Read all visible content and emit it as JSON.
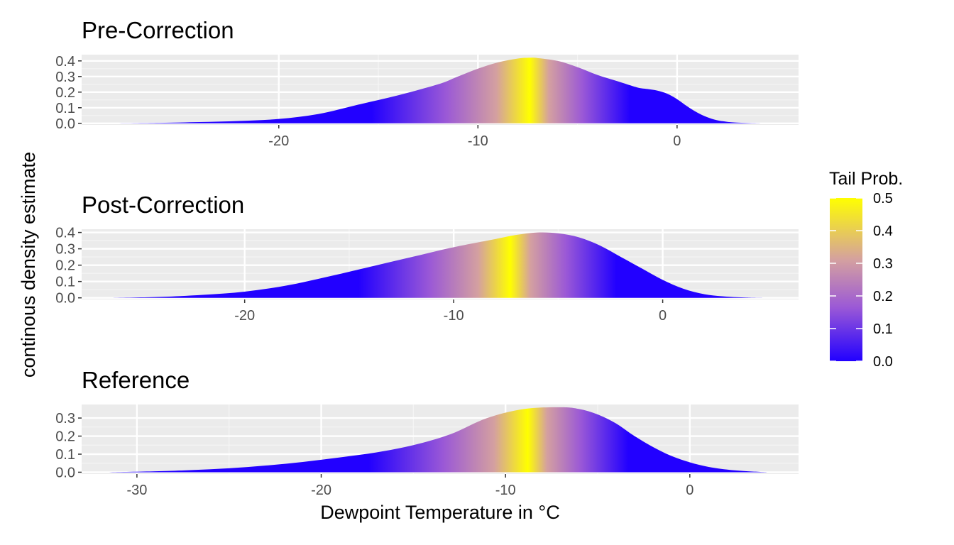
{
  "figure": {
    "ylabel": "continous density estimate",
    "xlabel": "Dewpoint Temperature in °C"
  },
  "legend": {
    "title": "Tail Prob.",
    "ticks": [
      "0.0",
      "0.1",
      "0.2",
      "0.3",
      "0.4",
      "0.5"
    ],
    "colors": [
      "#2200ff",
      "#9b59d6",
      "#d4a0a0",
      "#ffff00"
    ]
  },
  "chart_data": [
    {
      "type": "area",
      "title": "Pre-Correction",
      "xlim": [
        -29.9,
        6.1
      ],
      "ylim": [
        -0.01,
        0.44
      ],
      "x_ticks": [
        -20,
        -10,
        0
      ],
      "x_tick_labels": [
        "-20",
        "-10",
        "0"
      ],
      "y_ticks": [
        0,
        0.1,
        0.2,
        0.3,
        0.4
      ],
      "y_tick_labels": [
        "0.0",
        "0.1",
        "0.2",
        "0.3",
        "0.4"
      ],
      "x": [
        -28.3,
        -26,
        -24,
        -22,
        -20,
        -18,
        -16,
        -14,
        -12,
        -11,
        -10,
        -9,
        -8,
        -7.4,
        -7,
        -6,
        -5,
        -4,
        -3,
        -2,
        -1.5,
        -1,
        -0.5,
        0,
        0.5,
        1,
        1.5,
        2,
        2.5,
        3,
        4,
        4.6
      ],
      "y": [
        0.0,
        0.003,
        0.008,
        0.015,
        0.028,
        0.06,
        0.12,
        0.18,
        0.25,
        0.3,
        0.35,
        0.39,
        0.415,
        0.42,
        0.418,
        0.4,
        0.36,
        0.31,
        0.27,
        0.23,
        0.22,
        0.21,
        0.19,
        0.155,
        0.11,
        0.07,
        0.04,
        0.02,
        0.01,
        0.005,
        0.001,
        0.0
      ],
      "peak_x": -7.4
    },
    {
      "type": "area",
      "title": "Post-Correction",
      "xlim": [
        -27.8,
        6.5
      ],
      "ylim": [
        -0.01,
        0.42
      ],
      "x_ticks": [
        -20,
        -10,
        0
      ],
      "x_tick_labels": [
        "-20",
        "-10",
        "0"
      ],
      "y_ticks": [
        0,
        0.1,
        0.2,
        0.3,
        0.4
      ],
      "y_tick_labels": [
        "0.0",
        "0.1",
        "0.2",
        "0.3",
        "0.4"
      ],
      "x": [
        -26.4,
        -24,
        -22,
        -20,
        -18,
        -16,
        -14,
        -12,
        -10,
        -8,
        -7,
        -6,
        -5,
        -4,
        -3,
        -2,
        -1,
        0,
        1,
        2,
        3,
        4,
        4.8
      ],
      "y": [
        0.0,
        0.006,
        0.018,
        0.038,
        0.075,
        0.13,
        0.19,
        0.25,
        0.31,
        0.36,
        0.385,
        0.4,
        0.395,
        0.37,
        0.32,
        0.25,
        0.18,
        0.11,
        0.055,
        0.022,
        0.008,
        0.002,
        0.0
      ],
      "peak_x": -7.3
    },
    {
      "type": "area",
      "title": "Reference",
      "xlim": [
        -33,
        5.9
      ],
      "ylim": [
        -0.01,
        0.375
      ],
      "x_ticks": [
        -30,
        -20,
        -10,
        0
      ],
      "x_tick_labels": [
        "-30",
        "-20",
        "-10",
        "0"
      ],
      "y_ticks": [
        0,
        0.1,
        0.2,
        0.3
      ],
      "y_tick_labels": [
        "0.0",
        "0.1",
        "0.2",
        "0.3"
      ],
      "x": [
        -31.5,
        -29,
        -27,
        -25,
        -23,
        -21,
        -19,
        -17,
        -15,
        -13,
        -11,
        -9,
        -7,
        -6,
        -5,
        -4,
        -3,
        -2,
        -1,
        0,
        1,
        2,
        3,
        4.2
      ],
      "y": [
        0.0,
        0.005,
        0.012,
        0.022,
        0.037,
        0.057,
        0.082,
        0.11,
        0.15,
        0.21,
        0.3,
        0.35,
        0.36,
        0.35,
        0.32,
        0.27,
        0.2,
        0.14,
        0.09,
        0.055,
        0.03,
        0.015,
        0.006,
        0.0
      ],
      "peak_x": -8.8
    }
  ]
}
